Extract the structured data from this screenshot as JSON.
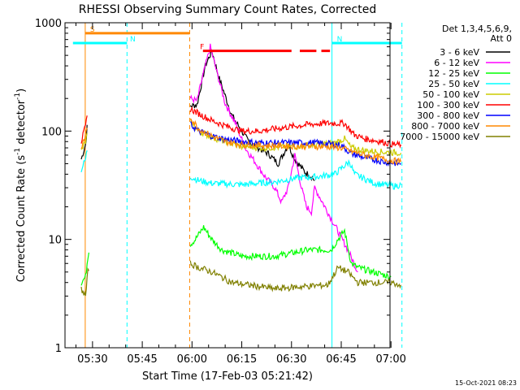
{
  "chart_data": {
    "type": "line",
    "title": "RHESSI Observing Summary Count Rates, Corrected",
    "xlabel": "Start Time (17-Feb-03 05:21:42)",
    "ylabel_prefix": "Corrected Count Rate (s",
    "ylabel_sup": "-1",
    "ylabel_mid": " detector",
    "ylabel_suffix": ")",
    "timestamp": "15-Oct-2021 08:23",
    "x_range_minutes": [
      5.3,
      103.3
    ],
    "x_ticks": [
      {
        "label": "05:30",
        "minute": 330
      },
      {
        "label": "05:45",
        "minute": 345
      },
      {
        "label": "06:00",
        "minute": 360
      },
      {
        "label": "06:15",
        "minute": 375
      },
      {
        "label": "06:30",
        "minute": 390
      },
      {
        "label": "06:45",
        "minute": 405
      },
      {
        "label": "07:00",
        "minute": 420
      }
    ],
    "y_scale": "log",
    "y_range": [
      1,
      1000
    ],
    "y_ticks": [
      {
        "label": "1",
        "value": 1
      },
      {
        "label": "10",
        "value": 10
      },
      {
        "label": "100",
        "value": 100
      },
      {
        "label": "1000",
        "value": 1000
      }
    ],
    "legend": {
      "header1": "Det 1,3,4,5,6,9,",
      "header2": "Att 0",
      "placement": "right"
    },
    "series": [
      {
        "name": "3 - 6 keV",
        "color": "#000000",
        "points": [
          [
            326.6,
            55
          ],
          [
            327.9,
            75
          ],
          [
            328.6,
            130
          ],
          [
            359.5,
            170
          ],
          [
            361.5,
            175
          ],
          [
            364,
            400
          ],
          [
            366,
            550
          ],
          [
            368,
            320
          ],
          [
            372,
            140
          ],
          [
            375,
            100
          ],
          [
            377,
            80
          ],
          [
            380,
            70
          ],
          [
            383,
            62
          ],
          [
            386,
            50
          ],
          [
            389,
            75
          ],
          [
            391,
            55
          ],
          [
            394,
            42
          ],
          [
            396,
            38
          ],
          [
            397,
            35
          ]
        ]
      },
      {
        "name": "6 - 12 keV",
        "color": "#ff00ff",
        "points": [
          [
            359.5,
            200
          ],
          [
            361.5,
            190
          ],
          [
            363,
            300
          ],
          [
            365.5,
            600
          ],
          [
            367,
            400
          ],
          [
            370,
            180
          ],
          [
            373,
            120
          ],
          [
            376,
            70
          ],
          [
            379,
            52
          ],
          [
            382,
            38
          ],
          [
            385,
            30
          ],
          [
            387,
            22
          ],
          [
            389,
            30
          ],
          [
            391,
            60
          ],
          [
            393,
            30
          ],
          [
            394.5,
            20
          ],
          [
            396,
            18
          ],
          [
            397,
            30
          ],
          [
            407,
            8
          ],
          [
            410,
            5
          ]
        ]
      },
      {
        "name": "12 - 25 keV",
        "color": "#00ff00",
        "points": [
          [
            326.6,
            4
          ],
          [
            327.9,
            4.5
          ],
          [
            328.6,
            7
          ],
          [
            329.2,
            9
          ],
          [
            359.5,
            9
          ],
          [
            361,
            10
          ],
          [
            363.5,
            13
          ],
          [
            366,
            10
          ],
          [
            369,
            8
          ],
          [
            375,
            7
          ],
          [
            385,
            7
          ],
          [
            395,
            8
          ],
          [
            402,
            8
          ],
          [
            404,
            10
          ],
          [
            406,
            12
          ],
          [
            408,
            6
          ],
          [
            410,
            5.5
          ],
          [
            420,
            4.5
          ]
        ]
      },
      {
        "name": "25 - 50 keV",
        "color": "#00ffff",
        "points": [
          [
            326.6,
            44
          ],
          [
            327.9,
            55
          ],
          [
            328.6,
            75
          ],
          [
            359.5,
            38
          ],
          [
            362,
            35
          ],
          [
            366,
            33
          ],
          [
            375,
            32
          ],
          [
            385,
            34
          ],
          [
            392,
            37
          ],
          [
            398,
            38
          ],
          [
            403,
            40
          ],
          [
            406,
            48
          ],
          [
            407.5,
            52
          ],
          [
            409,
            40
          ],
          [
            415,
            33
          ],
          [
            421,
            31
          ],
          [
            423,
            32
          ]
        ]
      },
      {
        "name": "50 - 100 keV",
        "color": "#cccc00",
        "points": [
          [
            326.6,
            65
          ],
          [
            327.9,
            80
          ],
          [
            328.6,
            100
          ],
          [
            359.5,
            120
          ],
          [
            362,
            100
          ],
          [
            366,
            88
          ],
          [
            370,
            80
          ],
          [
            375,
            72
          ],
          [
            382,
            70
          ],
          [
            390,
            72
          ],
          [
            398,
            75
          ],
          [
            403,
            78
          ],
          [
            406,
            85
          ],
          [
            408,
            70
          ],
          [
            412,
            66
          ],
          [
            418,
            64
          ],
          [
            423,
            63
          ]
        ]
      },
      {
        "name": "100 - 300 keV",
        "color": "#ff0000",
        "points": [
          [
            326.6,
            80
          ],
          [
            327.9,
            110
          ],
          [
            328.6,
            150
          ],
          [
            359.5,
            160
          ],
          [
            362,
            145
          ],
          [
            366,
            125
          ],
          [
            370,
            112
          ],
          [
            375,
            100
          ],
          [
            380,
            100
          ],
          [
            385,
            105
          ],
          [
            390,
            110
          ],
          [
            395,
            115
          ],
          [
            400,
            118
          ],
          [
            404,
            118
          ],
          [
            406,
            118
          ],
          [
            409,
            92
          ],
          [
            412,
            85
          ],
          [
            417,
            80
          ],
          [
            421,
            75
          ],
          [
            423,
            75
          ]
        ]
      },
      {
        "name": "300 - 800 keV",
        "color": "#0000ff",
        "points": [
          [
            359.5,
            115
          ],
          [
            362,
            100
          ],
          [
            366,
            90
          ],
          [
            370,
            84
          ],
          [
            375,
            80
          ],
          [
            380,
            78
          ],
          [
            386,
            78
          ],
          [
            392,
            78
          ],
          [
            397,
            78
          ],
          [
            402,
            76
          ],
          [
            405,
            74
          ],
          [
            408,
            62
          ],
          [
            412,
            57
          ],
          [
            418,
            52
          ],
          [
            423,
            50
          ]
        ]
      },
      {
        "name": "800 - 7000 keV",
        "color": "#ff8800",
        "points": [
          [
            326.6,
            70
          ],
          [
            327.9,
            90
          ],
          [
            328.6,
            115
          ],
          [
            359.5,
            135
          ],
          [
            362,
            105
          ],
          [
            366,
            90
          ],
          [
            370,
            80
          ],
          [
            375,
            75
          ],
          [
            380,
            74
          ],
          [
            388,
            73
          ],
          [
            396,
            72
          ],
          [
            401,
            72
          ],
          [
            405,
            70
          ],
          [
            408,
            65
          ],
          [
            412,
            60
          ],
          [
            418,
            55
          ],
          [
            423,
            52
          ]
        ]
      },
      {
        "name": "7000 - 15000 keV",
        "color": "#808000",
        "points": [
          [
            326.6,
            3.5
          ],
          [
            327.9,
            3
          ],
          [
            328.6,
            5
          ],
          [
            329.2,
            6
          ],
          [
            359.5,
            6
          ],
          [
            362,
            5.5
          ],
          [
            366,
            5
          ],
          [
            372,
            4
          ],
          [
            385,
            3.5
          ],
          [
            395,
            3.7
          ],
          [
            401,
            3.8
          ],
          [
            404,
            5.5
          ],
          [
            407,
            5
          ],
          [
            410,
            4
          ],
          [
            420,
            4
          ],
          [
            423,
            3.8
          ]
        ]
      }
    ],
    "flags": [
      {
        "label": "S",
        "color": "#ff8800",
        "value": 800,
        "start": 327.8,
        "end": 359.3
      },
      {
        "label": "N",
        "color": "#00ffff",
        "value": 650,
        "start": 324.1,
        "end": 340.4,
        "label_at": 340.8
      },
      {
        "label": "N",
        "color": "#00ffff",
        "value": 650,
        "start": 402.2,
        "end": 423.3
      },
      {
        "label": "F",
        "color": "#ff0000",
        "value": 550,
        "start": 363.3,
        "end": 390,
        "label_at": 361.9
      },
      {
        "label": "",
        "color": "#ff0000",
        "value": 550,
        "start": 392.5,
        "end": 397.5
      },
      {
        "label": "",
        "color": "#ff0000",
        "value": 550,
        "start": 399,
        "end": 401.6
      }
    ],
    "vlines": [
      {
        "color": "#ff8800",
        "dashed": false,
        "minute": 327.8
      },
      {
        "color": "#00ffff",
        "dashed": true,
        "minute": 340.4
      },
      {
        "color": "#ff8800",
        "dashed": true,
        "minute": 359.3
      },
      {
        "color": "#00ffff",
        "dashed": false,
        "minute": 402.2
      },
      {
        "color": "#00ffff",
        "dashed": true,
        "minute": 423.3
      }
    ]
  }
}
